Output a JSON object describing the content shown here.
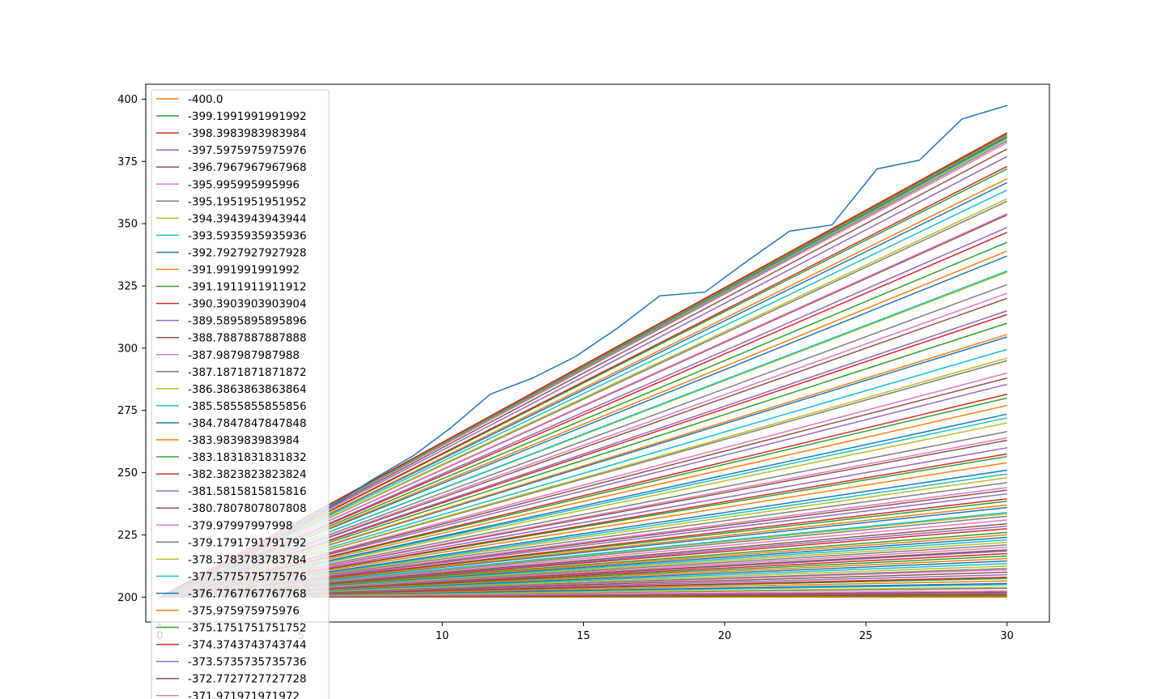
{
  "chart_data": {
    "type": "line",
    "title": "",
    "xlabel": "",
    "ylabel": "",
    "xlim": [
      -0.5,
      31.5
    ],
    "ylim": [
      190,
      406
    ],
    "x_ticks": [
      0,
      5,
      10,
      15,
      20,
      25,
      30
    ],
    "x_tick_labels": [
      "0",
      "5",
      "10",
      "15",
      "20",
      "25",
      "30"
    ],
    "y_ticks": [
      200,
      225,
      250,
      275,
      300,
      325,
      350,
      375,
      400
    ],
    "y_tick_labels": [
      "200",
      "225",
      "250",
      "275",
      "300",
      "325",
      "350",
      "375",
      "400"
    ],
    "grid": false,
    "legend_position": "upper-left",
    "x": [
      0,
      30
    ],
    "noisy_series": {
      "x": [
        0,
        1.5,
        3,
        4.5,
        6,
        7.5,
        9,
        10.3,
        11.7,
        13.2,
        14.7,
        16.2,
        17.7,
        19.3,
        20.8,
        22.3,
        23.8,
        25.4,
        26.9,
        28.4,
        30
      ],
      "values": [
        200,
        208,
        216,
        225,
        236,
        247,
        257,
        268,
        281.5,
        288,
        296.5,
        308,
        321,
        322.5,
        335,
        347,
        349.5,
        372,
        375.5,
        392,
        397.5
      ]
    },
    "legend": [
      "-400.0",
      "-399.1991991991992",
      "-398.3983983983984",
      "-397.5975975975976",
      "-396.7967967967968",
      "-395.995995995996",
      "-395.1951951951952",
      "-394.3943943943944",
      "-393.5935935935936",
      "-392.7927927927928",
      "-391.991991991992",
      "-391.1911911911912",
      "-390.3903903903904",
      "-389.5895895895896",
      "-388.7887887887888",
      "-387.987987987988",
      "-387.1871871871872",
      "-386.3863863863864",
      "-385.5855855855856",
      "-384.7847847847848",
      "-383.983983983984",
      "-383.1831831831832",
      "-382.3823823823824",
      "-381.5815815815816",
      "-380.7807807807808",
      "-379.97997997998",
      "-379.1791791791792",
      "-378.3783783783784",
      "-377.5775775775776",
      "-376.7767767767768",
      "-375.975975975976",
      "-375.1751751751752",
      "-374.3743743743744",
      "-373.5735735735736",
      "-372.7727727727728",
      "-371.971971971972"
    ],
    "colors": [
      "#1f77b4",
      "#ff7f0e",
      "#2ca02c",
      "#d62728",
      "#9467bd",
      "#8c564b",
      "#e377c2",
      "#7f7f7f",
      "#bcbd22",
      "#17becf"
    ],
    "line_end_values": [
      386.5,
      386,
      385.5,
      385,
      384.5,
      384,
      383.3,
      382.5,
      380,
      377,
      373,
      372,
      368,
      366.5,
      363.5,
      360,
      359,
      354,
      353.5,
      348.5,
      346.5,
      342.5,
      339,
      337,
      331,
      330.5,
      325.5,
      322,
      320,
      315,
      313.5,
      310,
      305.5,
      304.5,
      299.5,
      296,
      295,
      290,
      288,
      285.5,
      281.5,
      280,
      277,
      273.5,
      272,
      270,
      266.5,
      264,
      263,
      260,
      257.5,
      256.5,
      254,
      251,
      249.5,
      248,
      246,
      244,
      243,
      241.5,
      239.5,
      238.5,
      237,
      236,
      234,
      233.5,
      232.5,
      231,
      229.5,
      228.5,
      227.5,
      226,
      225,
      224,
      223,
      222,
      221,
      220,
      219,
      218.5,
      217.5,
      216.5,
      215.5,
      214.5,
      213.5,
      212.5,
      211.5,
      211,
      210,
      209,
      208,
      207.5,
      206.5,
      205.5,
      205,
      204,
      203.5,
      202.5,
      202,
      201.5,
      201,
      200.5,
      200
    ]
  }
}
